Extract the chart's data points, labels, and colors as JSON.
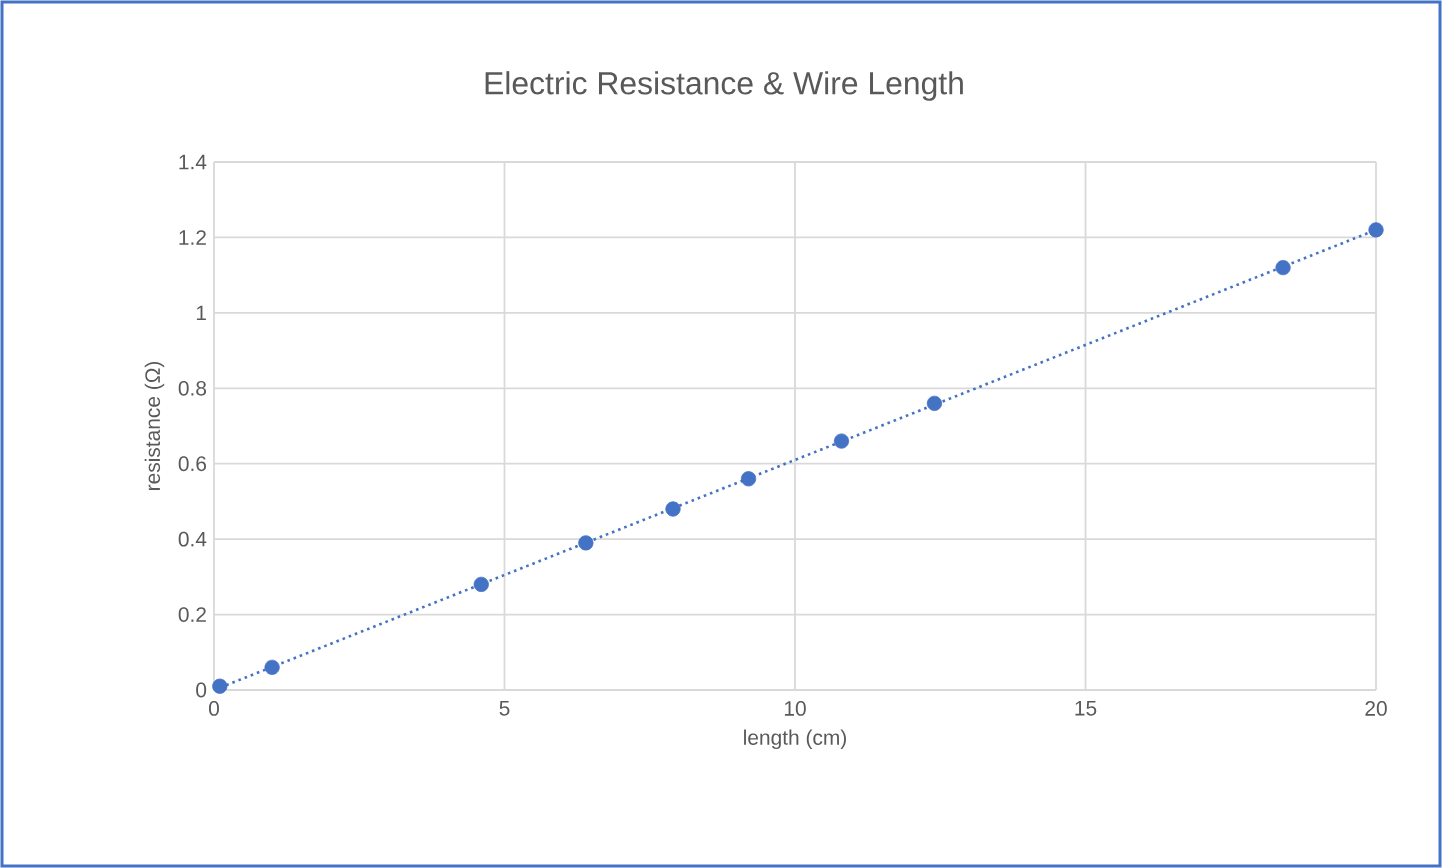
{
  "chart_data": {
    "type": "scatter",
    "title": "Electric Resistance & Wire Length",
    "xlabel": "length (cm)",
    "ylabel": "resistance (Ω)",
    "series": [
      {
        "color": "#4472c4",
        "marker": "circle",
        "x": [
          0.1,
          1,
          4.6,
          6.4,
          7.9,
          9.2,
          10.8,
          12.4,
          18.4,
          20
        ],
        "values": [
          0.01,
          0.06,
          0.28,
          0.39,
          0.48,
          0.56,
          0.66,
          0.76,
          1.12,
          1.22
        ]
      },
      {
        "type": "line",
        "color": "#4472c4",
        "marker": "none",
        "line_style": "dotted",
        "x": [
          0,
          20
        ],
        "values": [
          0,
          1.22
        ]
      }
    ],
    "xlim": [
      0,
      20
    ],
    "ylim": [
      0,
      1.4
    ],
    "xticks": [
      0,
      5,
      10,
      15,
      20
    ],
    "yticks": [
      0,
      0.2,
      0.4,
      0.6,
      0.8,
      1,
      1.2,
      1.4
    ],
    "grid": true
  }
}
